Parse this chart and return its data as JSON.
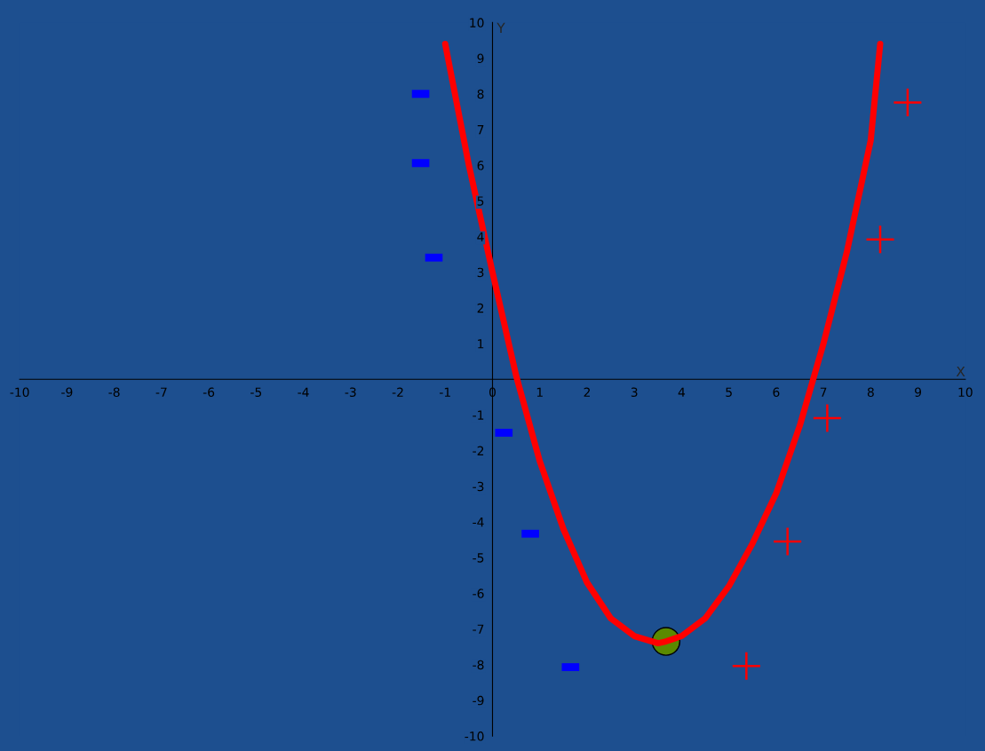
{
  "chart_data": {
    "type": "line",
    "xlabel": "X",
    "ylabel": "Y",
    "xlim": [
      -10,
      10
    ],
    "ylim": [
      -10,
      10
    ],
    "xticks": [
      -10,
      -9,
      -8,
      -7,
      -6,
      -5,
      -4,
      -3,
      -2,
      -1,
      0,
      1,
      2,
      3,
      4,
      5,
      6,
      7,
      8,
      9,
      10
    ],
    "yticks": [
      -10,
      -9,
      -8,
      -7,
      -6,
      -5,
      -4,
      -3,
      -2,
      -1,
      1,
      2,
      3,
      4,
      5,
      6,
      7,
      8,
      9,
      10
    ],
    "grid": false,
    "legend": false,
    "series": [
      {
        "color": "#ff0000",
        "marker": "none",
        "x": [
          -1,
          -0.5,
          0,
          0.5,
          1,
          1.5,
          2,
          2.5,
          3,
          3.5,
          3.67,
          4,
          4.5,
          5,
          5.5,
          6,
          6.5,
          7,
          7.5,
          8,
          8.2
        ],
        "values": [
          9.4,
          6.0,
          3.0,
          0.1,
          -2.3,
          -4.2,
          -5.7,
          -6.7,
          -7.2,
          -7.4,
          -7.35,
          -7.2,
          -6.7,
          -5.8,
          -4.6,
          -3.2,
          -1.3,
          1.0,
          3.6,
          6.7,
          9.4
        ]
      },
      {
        "type": "scatter",
        "color": "#5a8a00",
        "marker": "circle",
        "x": [
          3.67
        ],
        "values": [
          -7.35
        ]
      },
      {
        "type": "scatter",
        "color": "#ff0000",
        "marker": "cross",
        "x": [
          8.78,
          8.2,
          7.08,
          6.24,
          5.37
        ],
        "values": [
          7.76,
          3.92,
          -1.09,
          -4.55,
          -8.04
        ]
      },
      {
        "type": "scatter",
        "color": "#0000ff",
        "x": [
          -1.52,
          -1.52,
          -1.24,
          0.24,
          0.8,
          1.65
        ],
        "values": [
          8.0,
          6.06,
          3.41,
          -1.5,
          -4.33,
          -8.07
        ]
      }
    ]
  }
}
